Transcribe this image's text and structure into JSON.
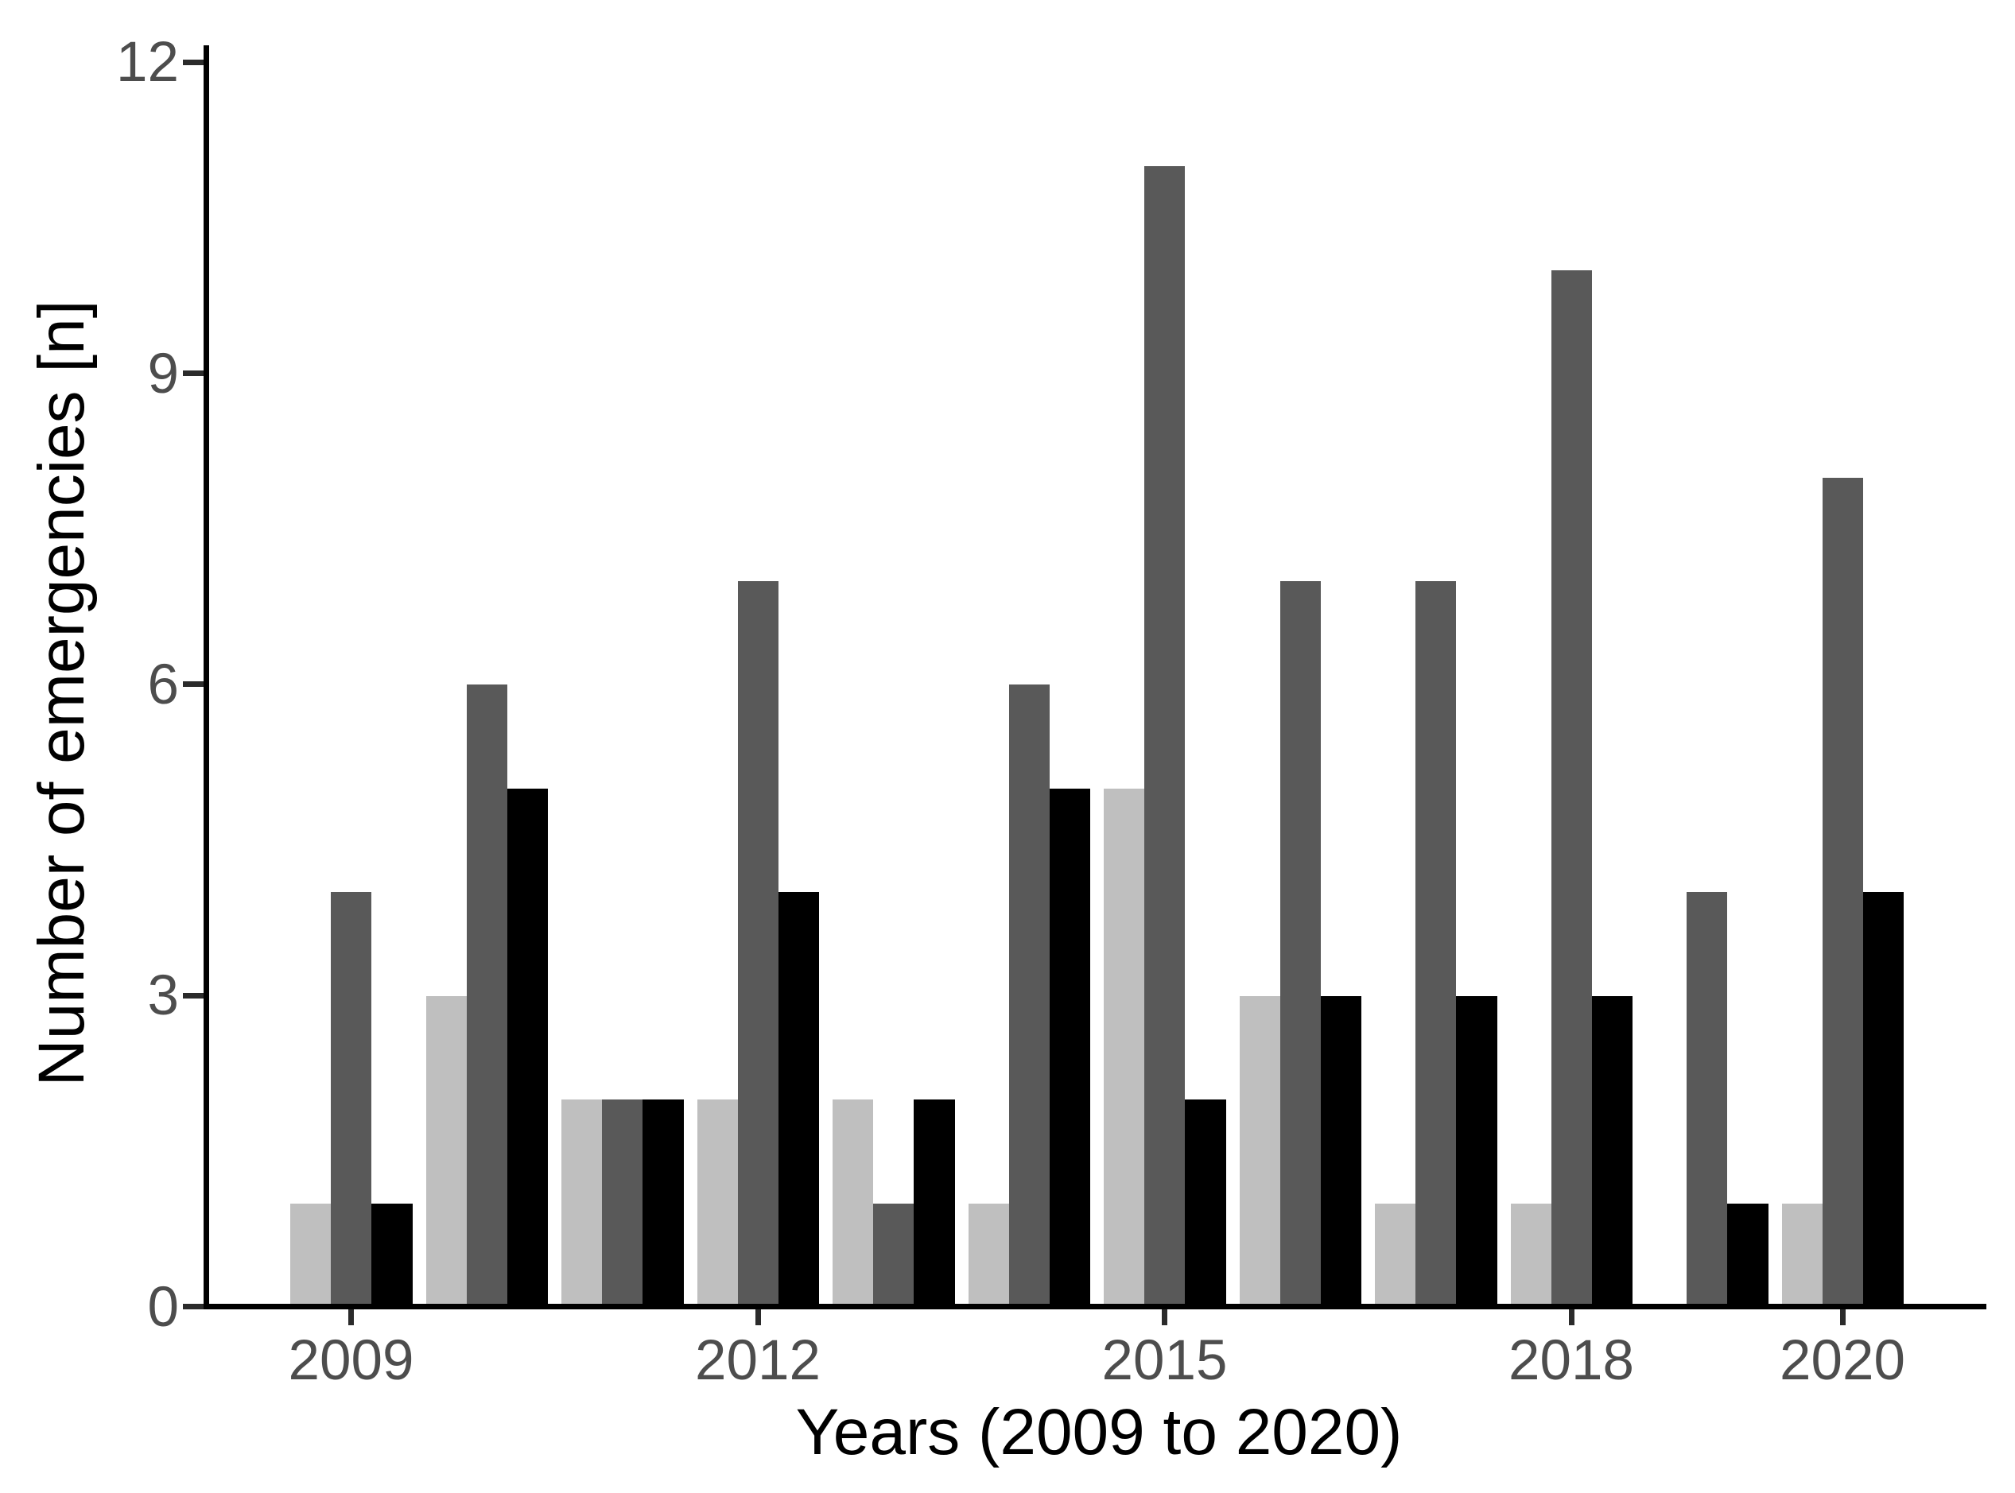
{
  "chart_data": {
    "type": "bar",
    "title": "",
    "xlabel": "Years (2009 to 2020)",
    "ylabel": "Number of emergencies [n]",
    "categories": [
      "2009",
      "2010",
      "2011",
      "2012",
      "2013",
      "2014",
      "2015",
      "2016",
      "2017",
      "2018",
      "2019",
      "2020"
    ],
    "series": [
      {
        "name": "light-grey",
        "color": "#bfbfbf",
        "values": [
          1,
          3,
          2,
          2,
          2,
          1,
          5,
          3,
          1,
          1,
          0,
          1
        ]
      },
      {
        "name": "dark-grey",
        "color": "#595959",
        "values": [
          4,
          6,
          2,
          7,
          1,
          6,
          11,
          7,
          7,
          10,
          4,
          8
        ]
      },
      {
        "name": "black",
        "color": "#000000",
        "values": [
          1,
          5,
          2,
          4,
          2,
          5,
          2,
          3,
          3,
          3,
          1,
          4
        ]
      }
    ],
    "ylim": [
      0,
      12
    ],
    "yticks": [
      0,
      3,
      6,
      9,
      12
    ],
    "xticks": [
      {
        "label": "2009",
        "category_index": 0
      },
      {
        "label": "2012",
        "category_index": 3
      },
      {
        "label": "2015",
        "category_index": 6
      },
      {
        "label": "2018",
        "category_index": 9
      },
      {
        "label": "2020",
        "category_index": 11
      }
    ],
    "grid": false,
    "legend": "none",
    "axis_color": "#000000",
    "tick_label_color": "#4d4d4d",
    "background": "#ffffff"
  }
}
